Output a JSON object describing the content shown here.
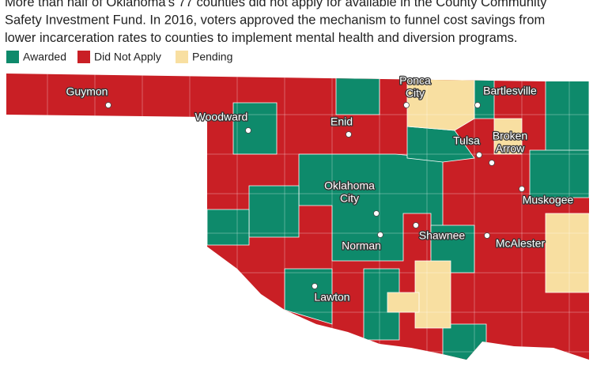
{
  "intro": {
    "lines": [
      "More than half of Oklahoma's 77 counties did not apply for available in the County Community",
      "Safety Investment Fund. In 2016, voters approved the mechanism to funnel cost savings from",
      "lower incarceration rates to counties to implement mental health and diversion programs."
    ]
  },
  "legend": [
    {
      "name": "Awarded",
      "color": "#0e8a6b"
    },
    {
      "name": "Did Not Apply",
      "color": "#c91f25"
    },
    {
      "name": "Pending",
      "color": "#f8dfa1"
    }
  ],
  "cities": [
    {
      "lines": [
        "Guymon"
      ]
    },
    {
      "lines": [
        "Woodward"
      ]
    },
    {
      "lines": [
        "Enid"
      ]
    },
    {
      "lines": [
        "Ponca",
        "City"
      ]
    },
    {
      "lines": [
        "Bartlesville"
      ]
    },
    {
      "lines": [
        "Tulsa"
      ]
    },
    {
      "lines": [
        "Broken",
        "Arrow"
      ]
    },
    {
      "lines": [
        "Oklahoma",
        "City"
      ]
    },
    {
      "lines": [
        "Muskogee"
      ]
    },
    {
      "lines": [
        "Shawnee"
      ]
    },
    {
      "lines": [
        "Norman"
      ]
    },
    {
      "lines": [
        "McAlester"
      ]
    },
    {
      "lines": [
        "Lawton"
      ]
    }
  ]
}
